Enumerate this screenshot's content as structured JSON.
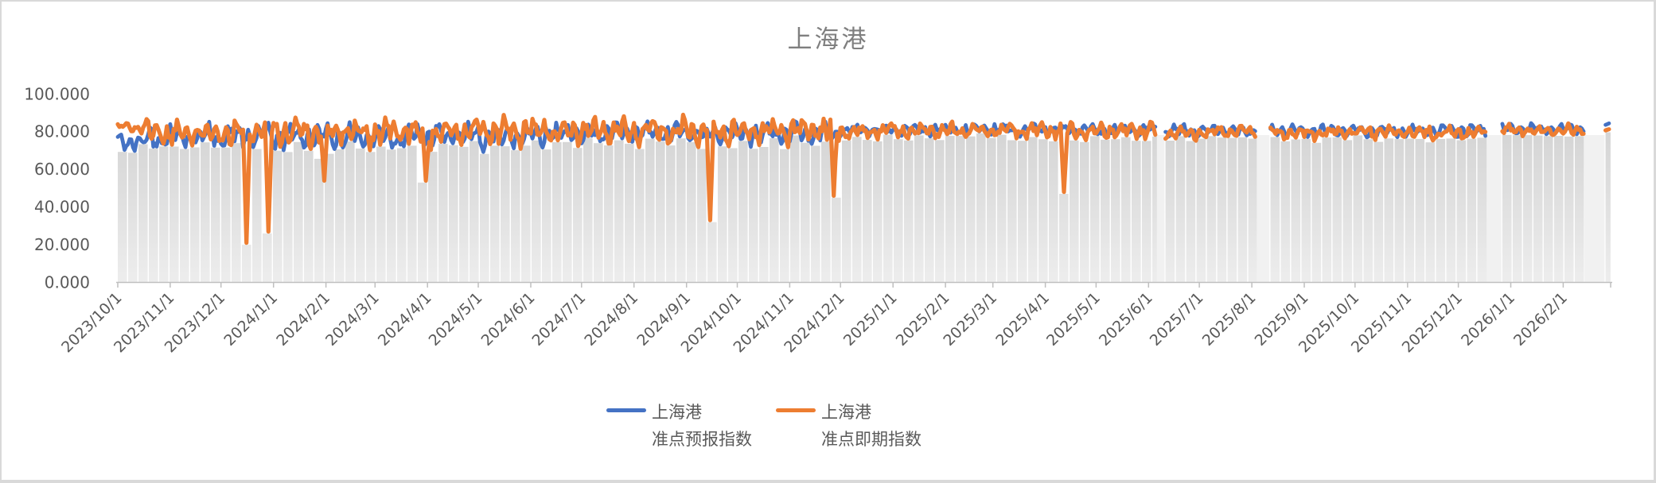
{
  "window": {
    "background": "#ffffff",
    "frame_color": "#d9d9d9"
  },
  "chart_data": {
    "type": "line",
    "title": "上海港",
    "legend_position": "bottom",
    "grid": false,
    "ylim": [
      0,
      100
    ],
    "ytick_values": [
      0,
      20,
      40,
      60,
      80,
      100
    ],
    "ytick_labels": [
      "0.000",
      "20.000",
      "40.000",
      "60.000",
      "80.000",
      "100.000"
    ],
    "x_start": "2023/10/1",
    "x_axis_end": "2026/3/1",
    "xtick_labels": [
      "2023/10/1",
      "2023/11/1",
      "2023/12/1",
      "2024/1/1",
      "2024/2/1",
      "2024/3/1",
      "2024/4/1",
      "2024/5/1",
      "2024/6/1",
      "2024/7/1",
      "2024/8/1",
      "2024/9/1",
      "2024/10/1",
      "2024/11/1",
      "2024/12/1",
      "2025/1/1",
      "2025/2/1",
      "2025/3/1",
      "2025/4/1",
      "2025/5/1",
      "2025/6/1",
      "2025/7/1",
      "2025/8/1",
      "2025/9/1",
      "2025/10/1",
      "2025/11/1",
      "2025/12/1",
      "2026/1/1",
      "2026/2/1"
    ],
    "series": [
      {
        "id": "forecast",
        "name_line1": "上海港",
        "name_line2": "准点预报指数",
        "color": "#4472C4"
      },
      {
        "id": "spot",
        "name_line1": "上海港",
        "name_line2": "准点即期指数",
        "color": "#ED7D31"
      }
    ],
    "segments": [
      {
        "from": "2023/10/1",
        "to": "2025/6/5"
      },
      {
        "from": "2025/6/11",
        "to": "2025/8/3"
      },
      {
        "from": "2025/8/12",
        "to": "2025/12/17"
      },
      {
        "from": "2025/12/27",
        "to": "2026/2/13"
      },
      {
        "from": "2026/2/26",
        "to": "2026/2/28"
      }
    ],
    "phases": [
      {
        "until": "2023/10/18",
        "forecast_mean": 74.5,
        "forecast_amp": 4.5,
        "spot_mean": 82.5,
        "spot_amp": 3.5
      },
      {
        "until": "2024/5/31",
        "forecast_mean": 77.5,
        "forecast_amp": 6.5,
        "spot_mean": 80.0,
        "spot_amp": 7.5
      },
      {
        "until": "2024/11/30",
        "forecast_mean": 79.0,
        "forecast_amp": 5.5,
        "spot_mean": 80.5,
        "spot_amp": 6.5
      },
      {
        "until": "2025/6/5",
        "forecast_mean": 81.0,
        "forecast_amp": 3.0,
        "spot_mean": 80.5,
        "spot_amp": 4.0
      },
      {
        "until": "2025/12/17",
        "forecast_mean": 80.5,
        "forecast_amp": 3.0,
        "spot_mean": 79.5,
        "spot_amp": 3.5
      },
      {
        "until": "2026/2/28",
        "forecast_mean": 81.5,
        "forecast_amp": 2.5,
        "spot_mean": 80.5,
        "spot_amp": 3.0
      }
    ],
    "anomalies": [
      {
        "series": "spot",
        "date": "2023/12/16",
        "value": 21
      },
      {
        "series": "spot",
        "date": "2023/12/29",
        "value": 27
      },
      {
        "series": "spot",
        "date": "2024/1/31",
        "value": 54
      },
      {
        "series": "spot",
        "date": "2024/3/31",
        "value": 54
      },
      {
        "series": "spot",
        "date": "2024/9/15",
        "value": 33
      },
      {
        "series": "spot",
        "date": "2024/11/27",
        "value": 46
      },
      {
        "series": "spot",
        "date": "2025/4/12",
        "value": 48
      }
    ],
    "final_values": {
      "forecast": 84,
      "spot": 81
    },
    "area_fill": {
      "top_color": "#d5d5d5",
      "bottom_color": "#ededed",
      "gap_band_color": "#f1f1f1",
      "axis_color": "#bfbfbf"
    }
  }
}
